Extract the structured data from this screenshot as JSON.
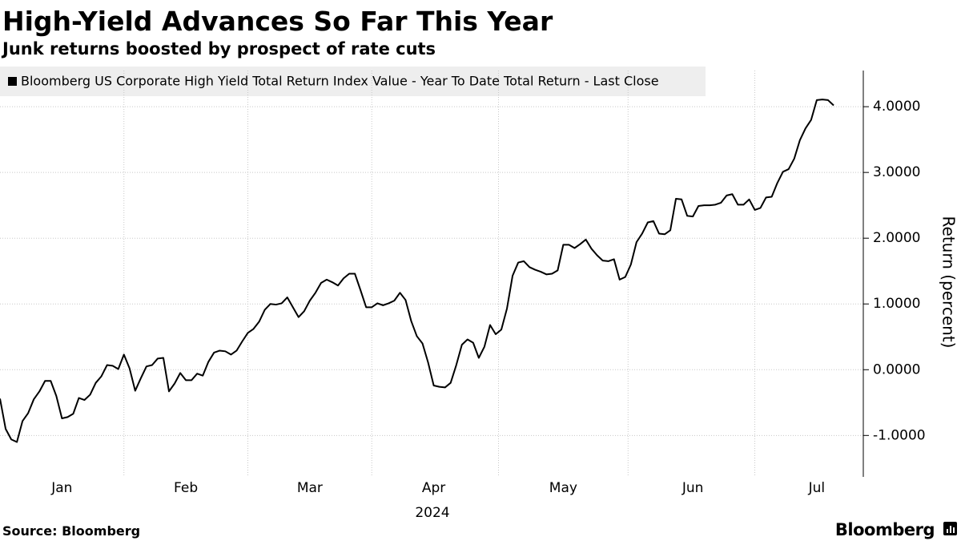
{
  "chart_data": {
    "type": "line",
    "title": "High-Yield Advances So Far This Year",
    "subtitle": "Junk returns boosted by prospect of rate cuts",
    "source": "Source: Bloomberg",
    "brand": "Bloomberg",
    "x_label": "2024",
    "y_label": "Return (percent)",
    "categories": [
      null,
      null,
      null,
      null,
      null,
      null,
      null,
      null,
      null,
      null,
      null,
      "Jan",
      null,
      null,
      null,
      null,
      null,
      null,
      null,
      null,
      null,
      null,
      null,
      null,
      null,
      null,
      null,
      null,
      null,
      null,
      null,
      null,
      null,
      "Feb",
      null,
      null,
      null,
      null,
      null,
      null,
      null,
      null,
      null,
      null,
      null,
      null,
      null,
      null,
      null,
      null,
      null,
      null,
      null,
      null,
      null,
      "Mar",
      null,
      null,
      null,
      null,
      null,
      null,
      null,
      null,
      null,
      null,
      null,
      null,
      null,
      null,
      null,
      null,
      null,
      null,
      null,
      null,
      null,
      "Apr",
      null,
      null,
      null,
      null,
      null,
      null,
      null,
      null,
      null,
      null,
      null,
      null,
      null,
      null,
      null,
      null,
      null,
      null,
      null,
      null,
      null,
      null,
      "May",
      null,
      null,
      null,
      null,
      null,
      null,
      null,
      null,
      null,
      null,
      null,
      null,
      null,
      null,
      null,
      null,
      null,
      null,
      null,
      null,
      null,
      null,
      "Jun",
      null,
      null,
      null,
      null,
      null,
      null,
      null,
      null,
      null,
      null,
      null,
      null,
      null,
      null,
      null,
      null,
      null,
      null,
      null,
      null,
      null,
      "Jul",
      null,
      null,
      null
    ],
    "series": [
      {
        "name": "Bloomberg US Corporate High Yield Total Return Index Value - Year To Date Total Return - Last Close",
        "color": "#000000",
        "values": [
          -0.44,
          -0.9,
          -1.06,
          -1.1,
          -0.78,
          -0.66,
          -0.45,
          -0.33,
          -0.17,
          -0.17,
          -0.4,
          -0.74,
          -0.72,
          -0.67,
          -0.43,
          -0.46,
          -0.38,
          -0.2,
          -0.1,
          0.07,
          0.06,
          0.01,
          0.23,
          0.02,
          -0.32,
          -0.13,
          0.05,
          0.07,
          0.17,
          0.18,
          -0.33,
          -0.21,
          -0.05,
          -0.16,
          -0.16,
          -0.06,
          -0.09,
          0.12,
          0.26,
          0.29,
          0.28,
          0.23,
          0.29,
          0.43,
          0.56,
          0.62,
          0.73,
          0.91,
          1.0,
          0.99,
          1.01,
          1.1,
          0.95,
          0.8,
          0.89,
          1.05,
          1.17,
          1.32,
          1.37,
          1.33,
          1.28,
          1.39,
          1.46,
          1.46,
          1.21,
          0.95,
          0.95,
          1.01,
          0.98,
          1.01,
          1.05,
          1.17,
          1.06,
          0.74,
          0.51,
          0.4,
          0.11,
          -0.24,
          -0.26,
          -0.27,
          -0.2,
          0.07,
          0.38,
          0.46,
          0.41,
          0.18,
          0.35,
          0.68,
          0.54,
          0.61,
          0.93,
          1.43,
          1.63,
          1.65,
          1.56,
          1.52,
          1.49,
          1.45,
          1.46,
          1.51,
          1.9,
          1.9,
          1.85,
          1.91,
          1.98,
          1.84,
          1.74,
          1.66,
          1.65,
          1.68,
          1.37,
          1.41,
          1.6,
          1.94,
          2.07,
          2.24,
          2.26,
          2.07,
          2.06,
          2.12,
          2.6,
          2.59,
          2.34,
          2.33,
          2.49,
          2.5,
          2.5,
          2.51,
          2.54,
          2.65,
          2.67,
          2.51,
          2.51,
          2.59,
          2.43,
          2.46,
          2.62,
          2.63,
          2.84,
          3.01,
          3.05,
          3.21,
          3.49,
          3.67,
          3.8,
          4.1,
          4.11,
          4.1,
          4.02
        ]
      }
    ],
    "ylim": [
      -1.63,
      4.55
    ],
    "yticks": [
      {
        "value": -1,
        "label": "-1.0000"
      },
      {
        "value": 0,
        "label": "0.0000"
      },
      {
        "value": 1,
        "label": "1.0000"
      },
      {
        "value": 2,
        "label": "2.0000"
      },
      {
        "value": 3,
        "label": "3.0000"
      },
      {
        "value": 4,
        "label": "4.0000"
      }
    ],
    "grid": true,
    "legend": "top-left"
  }
}
